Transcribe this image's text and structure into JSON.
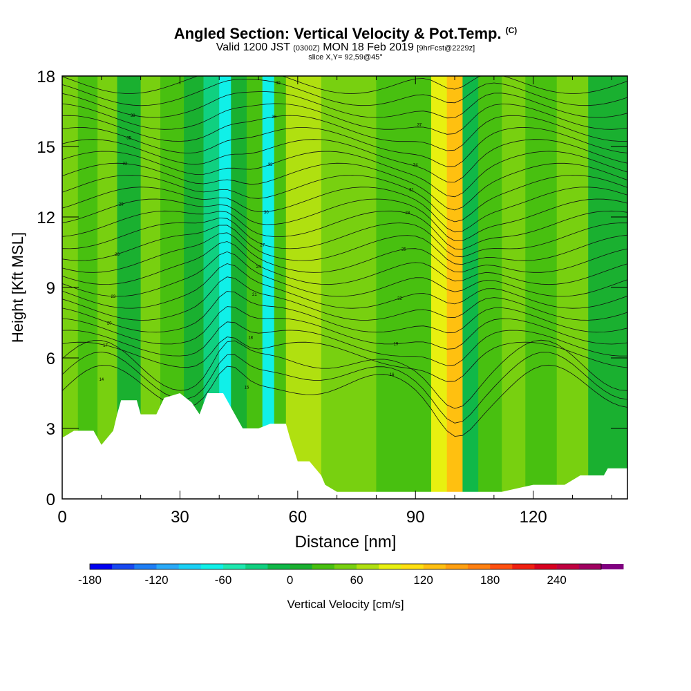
{
  "header": {
    "title": "Angled Section: Vertical Velocity & Pot.Temp.",
    "title_tag": "(C)",
    "valid_prefix": "Valid 1200 JST",
    "valid_z": "(0300Z)",
    "valid_date": "MON 18 Feb 2019",
    "valid_fcst": "[9hrFcst@2229z]",
    "slice": "slice X,Y= 92,59@45°"
  },
  "chart_data": {
    "type": "heatmap",
    "title": "Angled Section: Vertical Velocity & Pot.Temp.",
    "xlabel": "Distance [nm]",
    "ylabel": "Height [Kft MSL]",
    "xlim": [
      0,
      144
    ],
    "ylim": [
      0,
      18
    ],
    "x_ticks": [
      0,
      30,
      60,
      90,
      120
    ],
    "x_tick_labels": [
      "0",
      "30",
      "60",
      "90",
      "120"
    ],
    "y_ticks": [
      0,
      3,
      6,
      9,
      12,
      15,
      18
    ],
    "y_tick_labels": [
      "0",
      "3",
      "6",
      "9",
      "12",
      "15",
      "18"
    ],
    "colorbar": {
      "label": "Vertical Velocity [cm/s]",
      "min": -180,
      "max": 280,
      "step": 20,
      "tick_values": [
        -180,
        -120,
        -60,
        0,
        60,
        120,
        180,
        240
      ],
      "tick_labels": [
        "-180",
        "-120",
        "-60",
        "0",
        "60",
        "120",
        "180",
        "240"
      ],
      "colors": [
        "#0000f0",
        "#1848f0",
        "#1e7ef5",
        "#2aaaf8",
        "#1ad0f5",
        "#10f0e8",
        "#1ee8b0",
        "#10d080",
        "#10b848",
        "#1ab030",
        "#48c010",
        "#78d010",
        "#b0e010",
        "#e8f010",
        "#ffe010",
        "#ffc010",
        "#ffa010",
        "#ff8010",
        "#ff5010",
        "#f02010",
        "#d80020",
        "#c00040",
        "#a00060",
        "#800080"
      ]
    },
    "terrain": [
      [
        0,
        2.6
      ],
      [
        3,
        2.9
      ],
      [
        8,
        2.9
      ],
      [
        10,
        2.3
      ],
      [
        13,
        2.9
      ],
      [
        14,
        3.6
      ],
      [
        15,
        4.2
      ],
      [
        19,
        4.2
      ],
      [
        20,
        3.6
      ],
      [
        24,
        3.6
      ],
      [
        26,
        4.3
      ],
      [
        30,
        4.5
      ],
      [
        33,
        4.1
      ],
      [
        35,
        3.6
      ],
      [
        37,
        4.5
      ],
      [
        41,
        4.5
      ],
      [
        44,
        3.6
      ],
      [
        46,
        3.0
      ],
      [
        50,
        3.0
      ],
      [
        53,
        3.2
      ],
      [
        57,
        3.2
      ],
      [
        58,
        2.6
      ],
      [
        60,
        1.6
      ],
      [
        63,
        1.6
      ],
      [
        66,
        1.0
      ],
      [
        67,
        0.6
      ],
      [
        70,
        0.3
      ],
      [
        112,
        0.3
      ],
      [
        120,
        0.6
      ],
      [
        128,
        0.6
      ],
      [
        132,
        1.0
      ],
      [
        138,
        1.0
      ],
      [
        139,
        1.3
      ],
      [
        144,
        1.3
      ]
    ],
    "velocity_bands": [
      {
        "x": 0,
        "w": 4,
        "value": 40
      },
      {
        "x": 4,
        "w": 5,
        "value": 20
      },
      {
        "x": 9,
        "w": 5,
        "value": 40
      },
      {
        "x": 14,
        "w": 6,
        "value": 0
      },
      {
        "x": 20,
        "w": 5,
        "value": 40
      },
      {
        "x": 25,
        "w": 6,
        "value": 20
      },
      {
        "x": 31,
        "w": 5,
        "value": 0
      },
      {
        "x": 36,
        "w": 4,
        "value": -40
      },
      {
        "x": 40,
        "w": 3,
        "value": -80
      },
      {
        "x": 43,
        "w": 4,
        "value": 0
      },
      {
        "x": 47,
        "w": 4,
        "value": 20
      },
      {
        "x": 51,
        "w": 3,
        "value": -80
      },
      {
        "x": 54,
        "w": 3,
        "value": 20
      },
      {
        "x": 57,
        "w": 9,
        "value": 60
      },
      {
        "x": 66,
        "w": 8,
        "value": 40
      },
      {
        "x": 74,
        "w": 6,
        "value": 40
      },
      {
        "x": 80,
        "w": 6,
        "value": 20
      },
      {
        "x": 86,
        "w": 8,
        "value": 20
      },
      {
        "x": 94,
        "w": 4,
        "value": 80
      },
      {
        "x": 98,
        "w": 4,
        "value": 120
      },
      {
        "x": 102,
        "w": 4,
        "value": -20
      },
      {
        "x": 106,
        "w": 6,
        "value": 20
      },
      {
        "x": 112,
        "w": 6,
        "value": 40
      },
      {
        "x": 118,
        "w": 8,
        "value": 20
      },
      {
        "x": 126,
        "w": 8,
        "value": 40
      },
      {
        "x": 134,
        "w": 10,
        "value": 0
      }
    ],
    "contour_labels": [
      "14",
      "15",
      "16",
      "17",
      "18",
      "19",
      "20",
      "21",
      "22",
      "23",
      "24",
      "25",
      "26",
      "27",
      "28",
      "29",
      "30",
      "31",
      "32",
      "33",
      "34",
      "35",
      "36",
      "37",
      "38",
      "39",
      "40"
    ]
  }
}
